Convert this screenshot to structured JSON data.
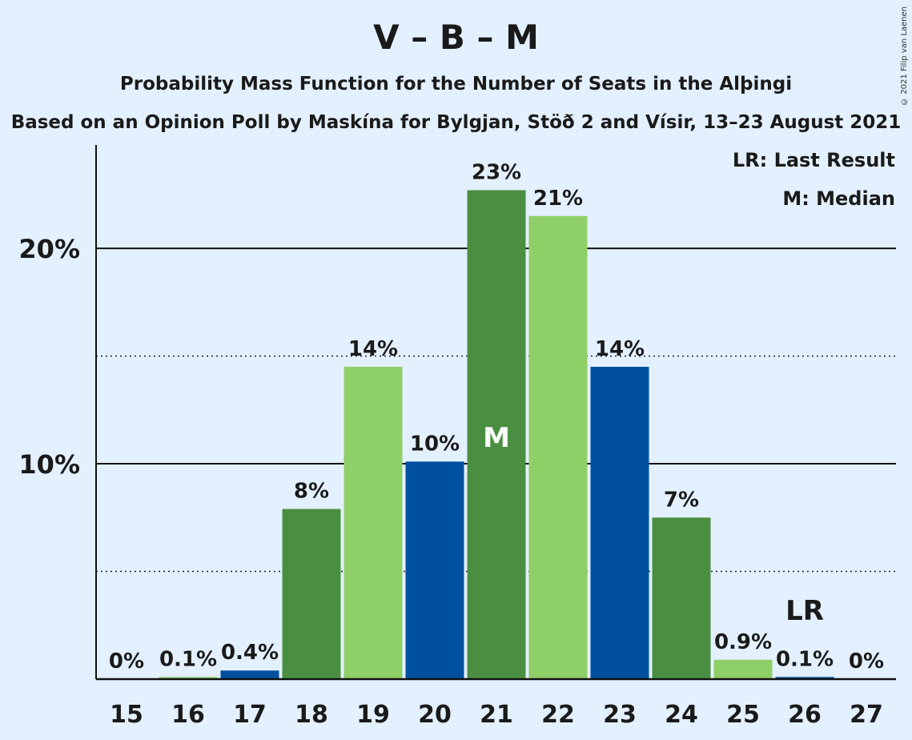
{
  "title": "V – B – M",
  "subtitle": "Probability Mass Function for the Number of Seats in the Alþingi",
  "subtitle2": "Based on an Opinion Poll by Maskína for Bylgjan, Stöð 2 and Vísir, 13–23 August 2021",
  "copyright": "© 2021 Filip van Laenen",
  "legend": {
    "last_result": "LR: Last Result",
    "median": "M: Median"
  },
  "colors": {
    "dark_green": "#4a8f41",
    "light_green": "#8fcf67",
    "blue": "#0050a0",
    "background": "#e3f0fd"
  },
  "chart_data": {
    "type": "bar",
    "categories": [
      "15",
      "16",
      "17",
      "18",
      "19",
      "20",
      "21",
      "22",
      "23",
      "24",
      "25",
      "26",
      "27"
    ],
    "values": [
      0,
      0.1,
      0.4,
      7.9,
      14.5,
      10.1,
      22.7,
      21.5,
      14.5,
      7.5,
      0.9,
      0.1,
      0
    ],
    "labels": [
      "0%",
      "0.1%",
      "0.4%",
      "8%",
      "14%",
      "10%",
      "23%",
      "21%",
      "14%",
      "7%",
      "0.9%",
      "0.1%",
      "0%"
    ],
    "bar_colors": [
      "light_green",
      "light_green",
      "blue",
      "dark_green",
      "light_green",
      "blue",
      "dark_green",
      "light_green",
      "blue",
      "dark_green",
      "light_green",
      "blue",
      "dark_green"
    ],
    "yticks": [
      {
        "value": 10,
        "label": "10%"
      },
      {
        "value": 20,
        "label": "20%"
      }
    ],
    "gridlines_dotted": [
      5,
      15
    ],
    "ylim": [
      0,
      24.8
    ],
    "median_category": "21",
    "median_label": "M",
    "last_result_category": "26",
    "last_result_label": "LR"
  }
}
